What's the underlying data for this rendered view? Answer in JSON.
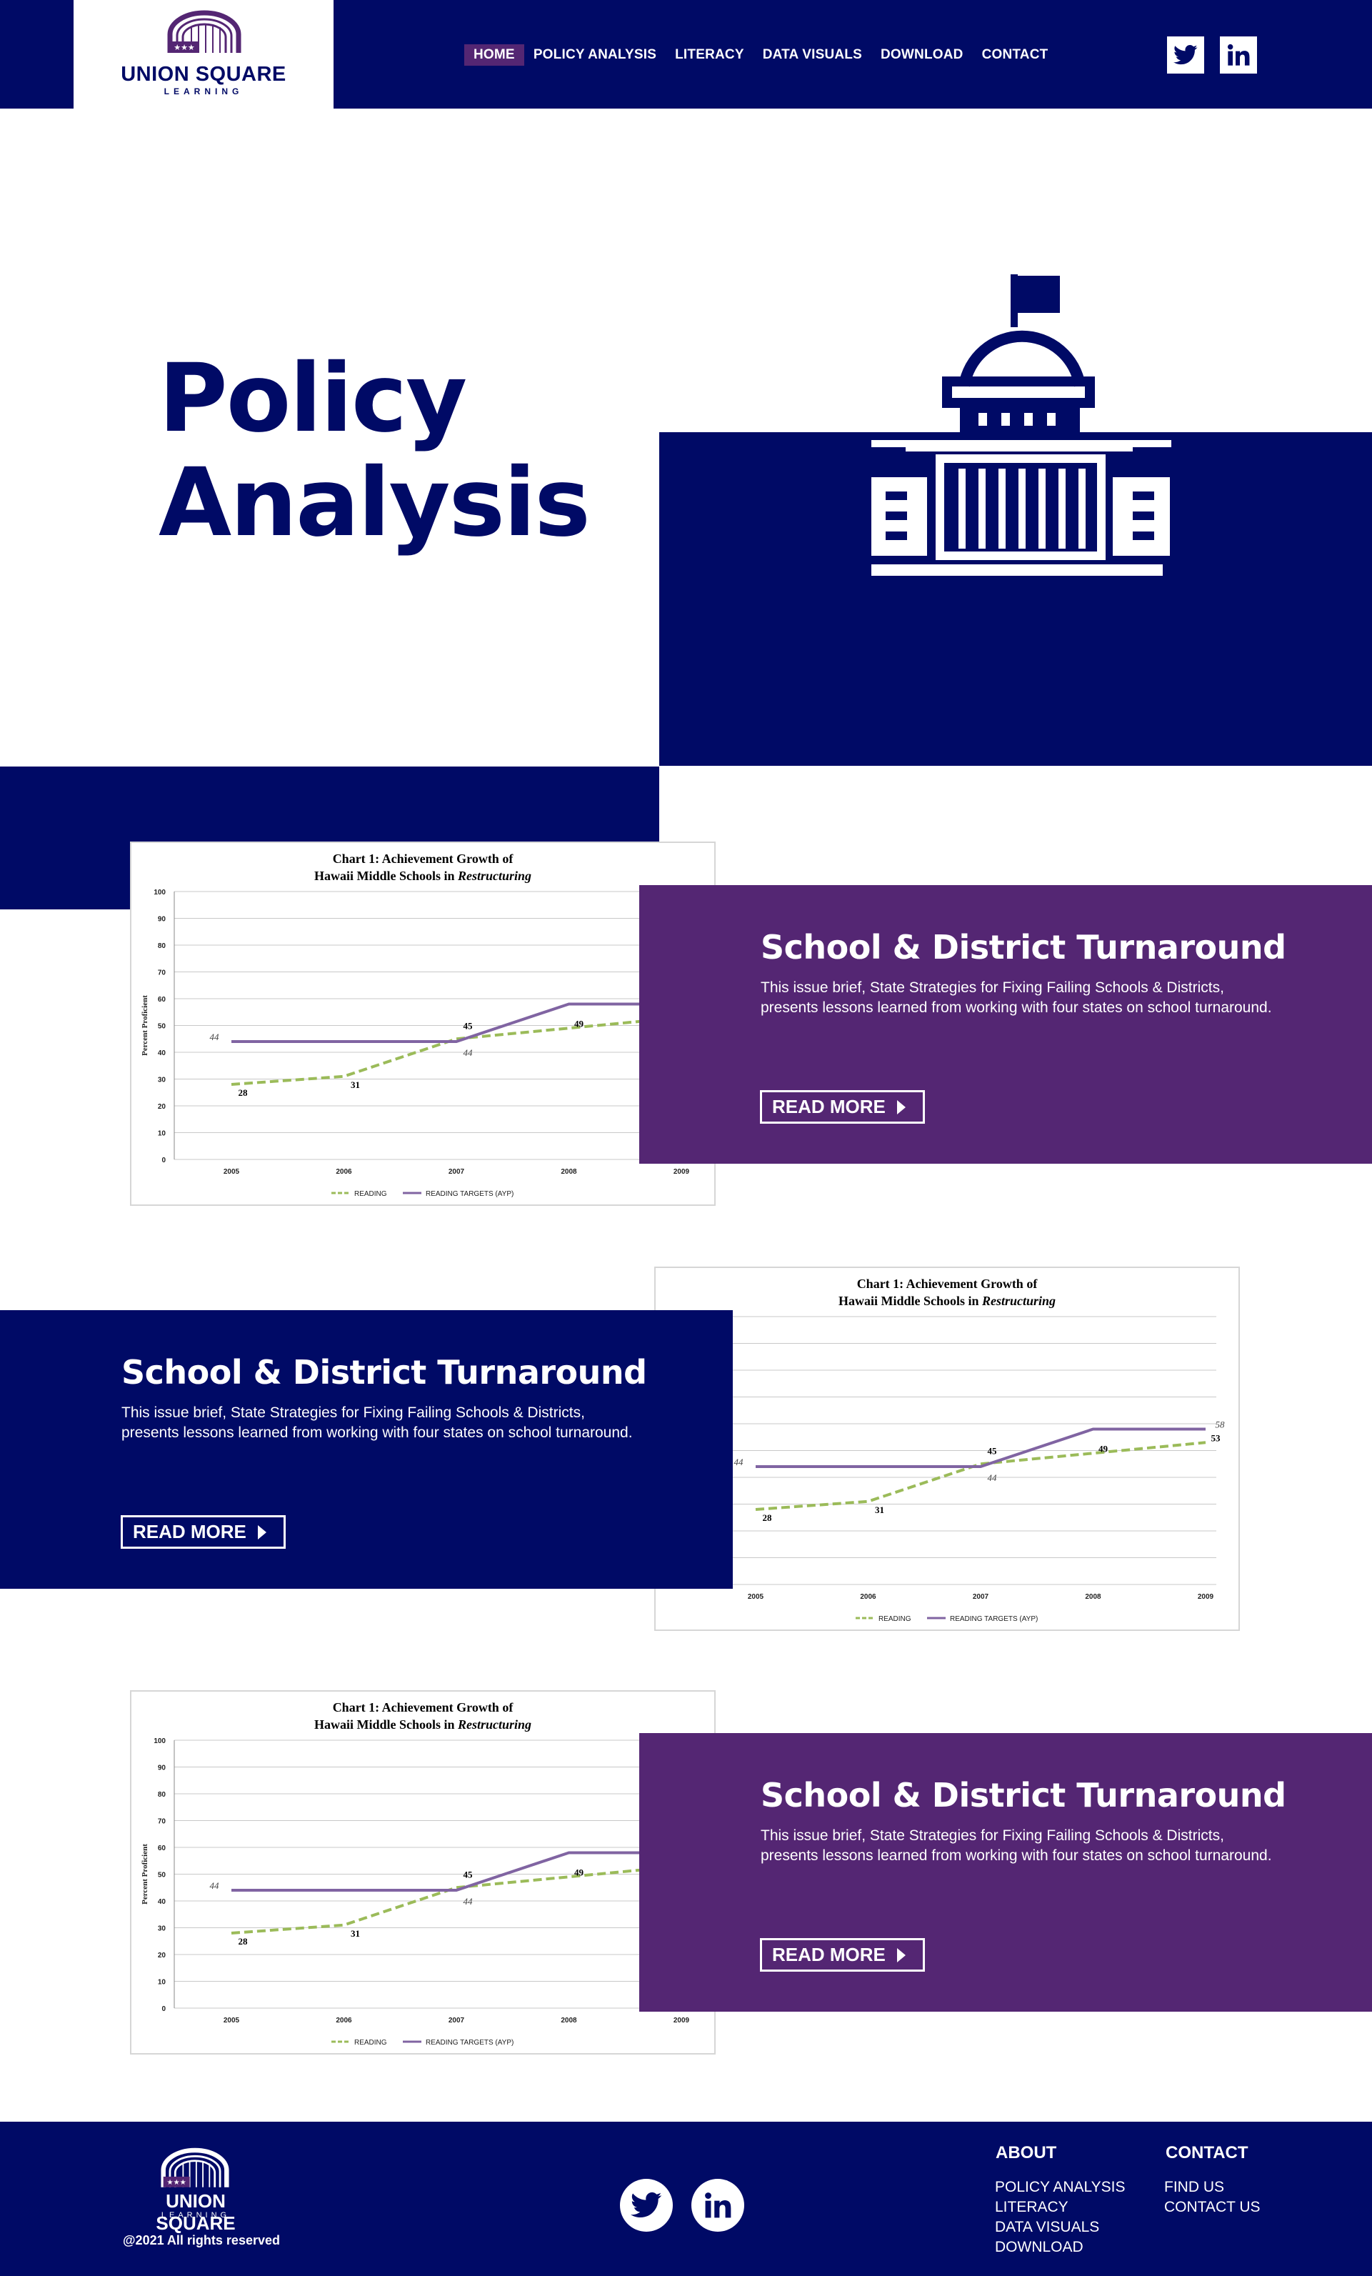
{
  "brand": {
    "name": "UNION SQUARE",
    "sub": "LEARNING"
  },
  "nav": {
    "items": [
      "HOME",
      "POLICY ANALYSIS",
      "LITERACY",
      "DATA VISUALS",
      "DOWNLOAD",
      "CONTACT"
    ],
    "active": "HOME"
  },
  "social": {
    "twitter_icon": "twitter-icon",
    "linkedin_icon": "linkedin-icon"
  },
  "hero": {
    "title_line1": "Policy",
    "title_line2": "Analysis",
    "icon": "capitol-building-icon"
  },
  "features": [
    {
      "title": "School & District Turnaround",
      "description": "This issue brief, State Strategies for Fixing Failing Schools & Districts, presents lessons learned from working with four states on school turnaround.",
      "button": "READ MORE"
    },
    {
      "title": "School & District Turnaround",
      "description": "This issue brief, State Strategies for Fixing Failing Schools & Districts, presents lessons learned from working with four states on school turnaround.",
      "button": "READ MORE"
    },
    {
      "title": "School & District Turnaround",
      "description": "This issue brief, State Strategies for Fixing Failing Schools & Districts, presents lessons learned from working with four states on school turnaround.",
      "button": "READ MORE"
    }
  ],
  "chart_data": {
    "type": "line",
    "title_line1": "Chart 1: Achievement Growth of",
    "title_line2_prefix": "Hawaii Middle Schools in ",
    "title_line2_italic": "Restructuring",
    "ylabel": "Percent Proficient",
    "ylim": [
      0,
      100
    ],
    "yticks": [
      0,
      10,
      20,
      30,
      40,
      50,
      60,
      70,
      80,
      90,
      100
    ],
    "x": [
      "2005",
      "2006",
      "2007",
      "2008",
      "2009"
    ],
    "series": [
      {
        "name": "READING",
        "values": [
          28,
          31,
          45,
          49,
          53
        ],
        "labels": [
          "28",
          "31",
          "45",
          "49",
          "53"
        ],
        "color": "#9bbb59",
        "dashed": true
      },
      {
        "name": "READING TARGETS (AYP)",
        "values": [
          44,
          44,
          44,
          58,
          58
        ],
        "labels": [
          "44",
          "",
          "44",
          "",
          "58"
        ],
        "color": "#8064a2",
        "dashed": false
      }
    ],
    "legend": "bottom",
    "grid": true
  },
  "footer": {
    "copyright": "@2021 All rights reserved",
    "about_heading": "ABOUT",
    "about_links": [
      "POLICY ANALYSIS",
      "LITERACY",
      "DATA VISUALS",
      "DOWNLOAD"
    ],
    "contact_heading": "CONTACT",
    "contact_links": [
      "FIND US",
      "CONTACT US"
    ]
  },
  "colors": {
    "navy": "#000a66",
    "purple": "#542673",
    "reading": "#9bbb59",
    "targets": "#8064a2"
  }
}
